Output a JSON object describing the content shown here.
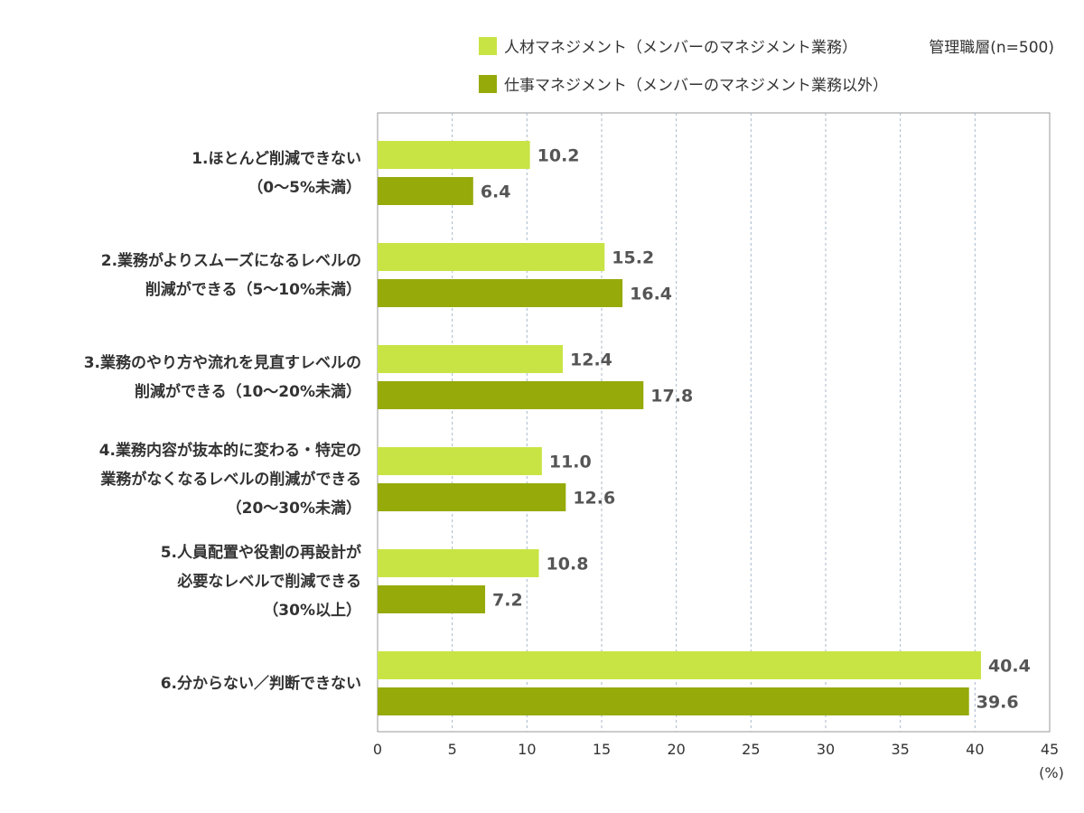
{
  "chart_data": {
    "type": "bar",
    "orientation": "horizontal",
    "sample_note": "管理職層(n=500)",
    "unit_label": "(%)",
    "xlim": [
      0,
      45
    ],
    "x_ticks": [
      "0",
      "5",
      "10",
      "15",
      "20",
      "25",
      "30",
      "35",
      "40",
      "45"
    ],
    "grid": true,
    "legend_position": "top-right",
    "categories": [
      [
        "1.ほとんど削減できない",
        "（0〜5%未満）"
      ],
      [
        "2.業務がよりスムーズになるレベルの",
        "削減ができる（5〜10%未満）"
      ],
      [
        "3.業務のやり方や流れを見直すレベルの",
        "削減ができる（10〜20%未満）"
      ],
      [
        "4.業務内容が抜本的に変わる・特定の",
        "業務がなくなるレベルの削減ができる",
        "（20〜30%未満）"
      ],
      [
        "5.人員配置や役割の再設計が",
        "必要なレベルで削減できる",
        "（30%以上）"
      ],
      [
        "6.分からない／判断できない"
      ]
    ],
    "series": [
      {
        "name": "人材マネジメント（メンバーのマネジメント業務）",
        "color": "#c8e444",
        "values": [
          10.2,
          15.2,
          12.4,
          11.0,
          10.8,
          40.4
        ],
        "labels": [
          "10.2",
          "15.2",
          "12.4",
          "11.0",
          "10.8",
          "40.4"
        ]
      },
      {
        "name": "仕事マネジメント（メンバーのマネジメント業務以外）",
        "color": "#96aa0a",
        "values": [
          6.4,
          16.4,
          17.8,
          12.6,
          7.2,
          39.6
        ],
        "labels": [
          "6.4",
          "16.4",
          "17.8",
          "12.6",
          "7.2",
          "39.6"
        ]
      }
    ]
  }
}
